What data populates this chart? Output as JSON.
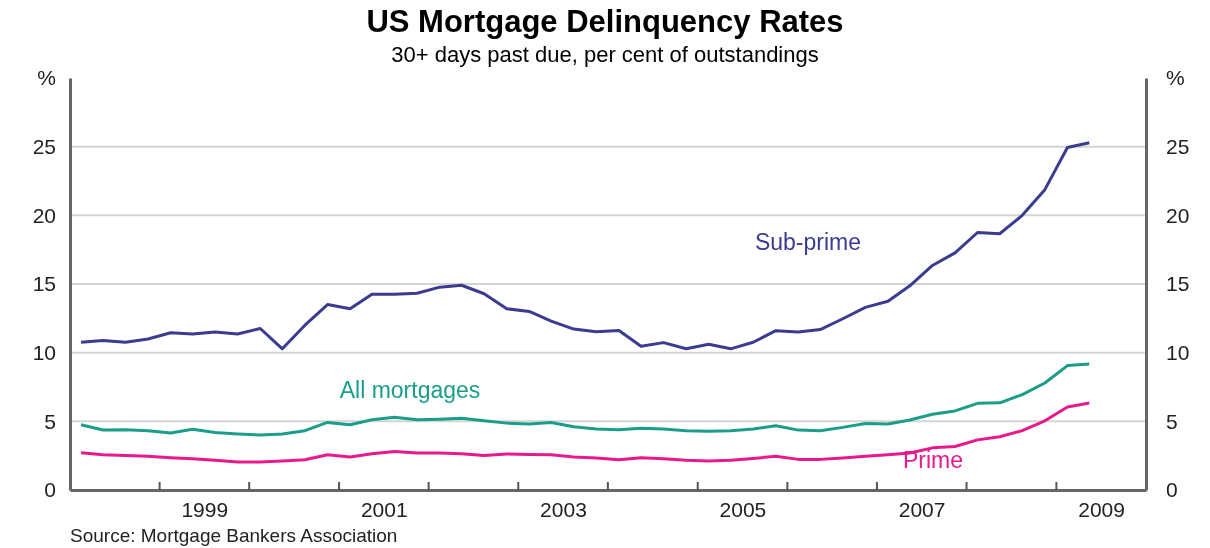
{
  "chart_data": {
    "type": "line",
    "title": "US Mortgage Delinquency Rates",
    "subtitle": "30+ days past due, per cent of outstandings",
    "annotations": [
      "Source: Mortgage Bankers Association"
    ],
    "x": [
      "1998-02-15",
      "1998-05-15",
      "1998-08-15",
      "1998-11-15",
      "1999-02-15",
      "1999-05-15",
      "1999-08-15",
      "1999-11-15",
      "2000-02-15",
      "2000-05-15",
      "2000-08-15",
      "2000-11-15",
      "2001-02-15",
      "2001-05-15",
      "2001-08-15",
      "2001-11-15",
      "2002-02-15",
      "2002-05-15",
      "2002-08-15",
      "2002-11-15",
      "2003-02-15",
      "2003-05-15",
      "2003-08-15",
      "2003-11-15",
      "2004-02-15",
      "2004-05-15",
      "2004-08-15",
      "2004-11-15",
      "2005-02-15",
      "2005-05-15",
      "2005-08-15",
      "2005-11-15",
      "2006-02-15",
      "2006-05-15",
      "2006-08-15",
      "2006-11-15",
      "2007-02-15",
      "2007-05-15",
      "2007-08-15",
      "2007-11-15",
      "2008-02-15",
      "2008-05-15",
      "2008-08-15",
      "2008-11-15",
      "2009-02-15",
      "2009-05-15"
    ],
    "series": [
      {
        "name": "Sub-prime",
        "color": "#3b3b8f",
        "values": [
          10.76,
          10.88,
          10.76,
          11.0,
          11.45,
          11.36,
          11.5,
          11.36,
          11.76,
          10.28,
          12.0,
          13.5,
          13.2,
          14.26,
          14.26,
          14.33,
          14.77,
          14.91,
          14.29,
          13.2,
          13.0,
          12.3,
          11.72,
          11.52,
          11.62,
          10.47,
          10.73,
          10.28,
          10.61,
          10.28,
          10.76,
          11.6,
          11.5,
          11.68,
          12.47,
          13.3,
          13.74,
          14.87,
          16.35,
          17.27,
          18.75,
          18.66,
          20.0,
          21.87,
          24.94,
          25.28
        ]
      },
      {
        "name": "All mortgages",
        "color": "#1a9e8a",
        "values": [
          4.75,
          4.37,
          4.39,
          4.32,
          4.15,
          4.42,
          4.18,
          4.08,
          4.0,
          4.08,
          4.32,
          4.92,
          4.75,
          5.11,
          5.3,
          5.11,
          5.16,
          5.23,
          5.04,
          4.87,
          4.8,
          4.92,
          4.6,
          4.44,
          4.39,
          4.49,
          4.44,
          4.32,
          4.27,
          4.32,
          4.44,
          4.68,
          4.36,
          4.32,
          4.56,
          4.84,
          4.8,
          5.1,
          5.52,
          5.76,
          6.31,
          6.35,
          6.95,
          7.79,
          9.06,
          9.18
        ]
      },
      {
        "name": "Prime",
        "color": "#e8198b",
        "values": [
          2.71,
          2.57,
          2.52,
          2.45,
          2.35,
          2.28,
          2.16,
          2.04,
          2.04,
          2.11,
          2.2,
          2.57,
          2.4,
          2.64,
          2.81,
          2.69,
          2.69,
          2.64,
          2.52,
          2.62,
          2.59,
          2.57,
          2.4,
          2.33,
          2.2,
          2.35,
          2.28,
          2.16,
          2.11,
          2.16,
          2.3,
          2.45,
          2.23,
          2.23,
          2.33,
          2.45,
          2.57,
          2.69,
          3.07,
          3.17,
          3.65,
          3.88,
          4.32,
          5.04,
          6.04,
          6.33
        ]
      }
    ],
    "xlim": [
      "1998-01-01",
      "2010-01-01"
    ],
    "xticks": [
      {
        "value": "1999-01-01",
        "label": null
      },
      {
        "value": "1999-07-02",
        "label": "1999"
      },
      {
        "value": "2000-01-01",
        "label": null
      },
      {
        "value": "2001-01-01",
        "label": null
      },
      {
        "value": "2001-07-02",
        "label": "2001"
      },
      {
        "value": "2002-01-01",
        "label": null
      },
      {
        "value": "2003-01-01",
        "label": null
      },
      {
        "value": "2003-07-02",
        "label": "2003"
      },
      {
        "value": "2004-01-01",
        "label": null
      },
      {
        "value": "2005-01-01",
        "label": null
      },
      {
        "value": "2005-07-02",
        "label": "2005"
      },
      {
        "value": "2006-01-01",
        "label": null
      },
      {
        "value": "2007-01-01",
        "label": null
      },
      {
        "value": "2007-07-02",
        "label": "2007"
      },
      {
        "value": "2008-01-01",
        "label": null
      },
      {
        "value": "2009-01-01",
        "label": null
      },
      {
        "value": "2009-07-02",
        "label": "2009"
      }
    ],
    "ylim": [
      0,
      30
    ],
    "yticks": [
      0,
      5,
      10,
      15,
      20,
      25,
      {
        "value": 30,
        "label": "%"
      }
    ],
    "y2lim": [
      0,
      30
    ],
    "y2ticks": [
      0,
      5,
      10,
      15,
      20,
      25,
      {
        "value": 30,
        "label": "%"
      }
    ],
    "grid": "y",
    "legend": false
  }
}
